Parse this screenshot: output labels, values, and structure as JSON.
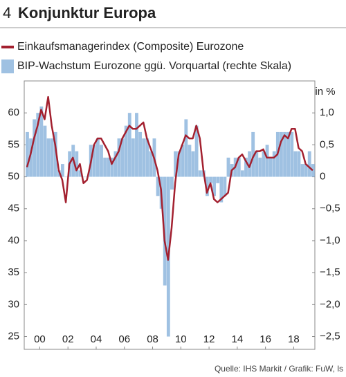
{
  "chart_data": {
    "type": "bar_line",
    "number": "4",
    "title": "Konjunktur Europa",
    "y2_label": "in %",
    "source": "Quelle: IHS Markit / Grafik: FuW, ls",
    "x": [
      1999.0,
      1999.25,
      1999.5,
      1999.75,
      2000.0,
      2000.25,
      2000.5,
      2000.75,
      2001.0,
      2001.25,
      2001.5,
      2001.75,
      2002.0,
      2002.25,
      2002.5,
      2002.75,
      2003.0,
      2003.25,
      2003.5,
      2003.75,
      2004.0,
      2004.25,
      2004.5,
      2004.75,
      2005.0,
      2005.25,
      2005.5,
      2005.75,
      2006.0,
      2006.25,
      2006.5,
      2006.75,
      2007.0,
      2007.25,
      2007.5,
      2007.75,
      2008.0,
      2008.25,
      2008.5,
      2008.75,
      2009.0,
      2009.25,
      2009.5,
      2009.75,
      2010.0,
      2010.25,
      2010.5,
      2010.75,
      2011.0,
      2011.25,
      2011.5,
      2011.75,
      2012.0,
      2012.25,
      2012.5,
      2012.75,
      2013.0,
      2013.25,
      2013.5,
      2013.75,
      2014.0,
      2014.25,
      2014.5,
      2014.75,
      2015.0,
      2015.25,
      2015.5,
      2015.75,
      2016.0,
      2016.25,
      2016.5,
      2016.75,
      2017.0,
      2017.25,
      2017.5,
      2017.75,
      2018.0,
      2018.25,
      2018.5,
      2018.75,
      2019.0,
      2019.25
    ],
    "xlim": [
      1998.9,
      2019.5
    ],
    "xticks": [
      {
        "value": 2000,
        "label": "00"
      },
      {
        "value": 2002,
        "label": "02"
      },
      {
        "value": 2004,
        "label": "04"
      },
      {
        "value": 2006,
        "label": "06"
      },
      {
        "value": 2008,
        "label": "08"
      },
      {
        "value": 2010,
        "label": "10"
      },
      {
        "value": 2012,
        "label": "12"
      },
      {
        "value": 2014,
        "label": "14"
      },
      {
        "value": 2016,
        "label": "16"
      },
      {
        "value": 2018,
        "label": "18"
      }
    ],
    "ylim": [
      23,
      65
    ],
    "yticks": [
      25,
      30,
      35,
      40,
      45,
      50,
      55,
      60
    ],
    "y2lim": [
      -2.7,
      1.5
    ],
    "y2ticks": [
      {
        "value": -2.5,
        "label": "−2,5"
      },
      {
        "value": -2.0,
        "label": "−2,0"
      },
      {
        "value": -1.5,
        "label": "−1,5"
      },
      {
        "value": -1.0,
        "label": "−1,0"
      },
      {
        "value": -0.5,
        "label": "−0,5"
      },
      0,
      {
        "value": 0.5,
        "label": "0,5"
      },
      {
        "value": 1.0,
        "label": "1,0"
      }
    ],
    "series": [
      {
        "name": "Einkaufsmanagerindex (Composite) Eurozone",
        "color": "#a3202f",
        "kind": "line",
        "values": [
          51.5,
          53.5,
          56,
          58,
          60.5,
          59,
          62.5,
          58,
          55,
          51,
          49.5,
          46,
          52,
          53,
          51,
          52,
          49,
          49.5,
          52,
          55,
          56,
          56,
          55,
          54,
          52,
          53,
          54,
          56,
          57,
          58,
          57.5,
          57.5,
          58,
          58.5,
          56,
          54.5,
          53,
          51,
          48,
          40,
          37,
          42,
          49,
          53.5,
          55,
          56.5,
          56,
          56,
          58,
          56,
          51,
          47.5,
          49,
          46.5,
          46,
          46.5,
          47,
          47.5,
          51,
          51.5,
          53,
          53.5,
          52.5,
          51.5,
          53,
          54,
          54,
          54.3,
          53,
          53,
          53,
          53.5,
          55.5,
          56.5,
          56,
          57.5,
          57.5,
          54.5,
          54,
          52,
          51.5,
          51
        ]
      },
      {
        "name": "BIP-Wachstum Eurozone ggü. Vorquartal (rechte Skala)",
        "color": "#9fc1e2",
        "kind": "bar",
        "axis": "y2",
        "values": [
          0.7,
          0.6,
          0.9,
          1.0,
          1.1,
          0.8,
          0.6,
          0.6,
          0.7,
          0.1,
          0.2,
          0.0,
          0.4,
          0.5,
          0.4,
          0.1,
          0.0,
          0.0,
          0.5,
          0.5,
          0.6,
          0.5,
          0.3,
          0.3,
          0.3,
          0.4,
          0.6,
          0.6,
          0.8,
          1.0,
          0.6,
          1.0,
          0.7,
          0.6,
          0.6,
          0.4,
          0.6,
          -0.3,
          -0.5,
          -1.7,
          -2.5,
          -0.2,
          0.4,
          0.4,
          0.5,
          0.9,
          0.5,
          0.4,
          0.8,
          0.1,
          0.1,
          -0.3,
          -0.1,
          -0.3,
          -0.1,
          -0.4,
          -0.3,
          0.3,
          0.2,
          0.3,
          0.3,
          0.1,
          0.3,
          0.4,
          0.7,
          0.4,
          0.3,
          0.4,
          0.5,
          0.3,
          0.4,
          0.7,
          0.7,
          0.7,
          0.7,
          0.7,
          0.4,
          0.4,
          0.2,
          0.2,
          0.4,
          0.2
        ]
      }
    ]
  }
}
